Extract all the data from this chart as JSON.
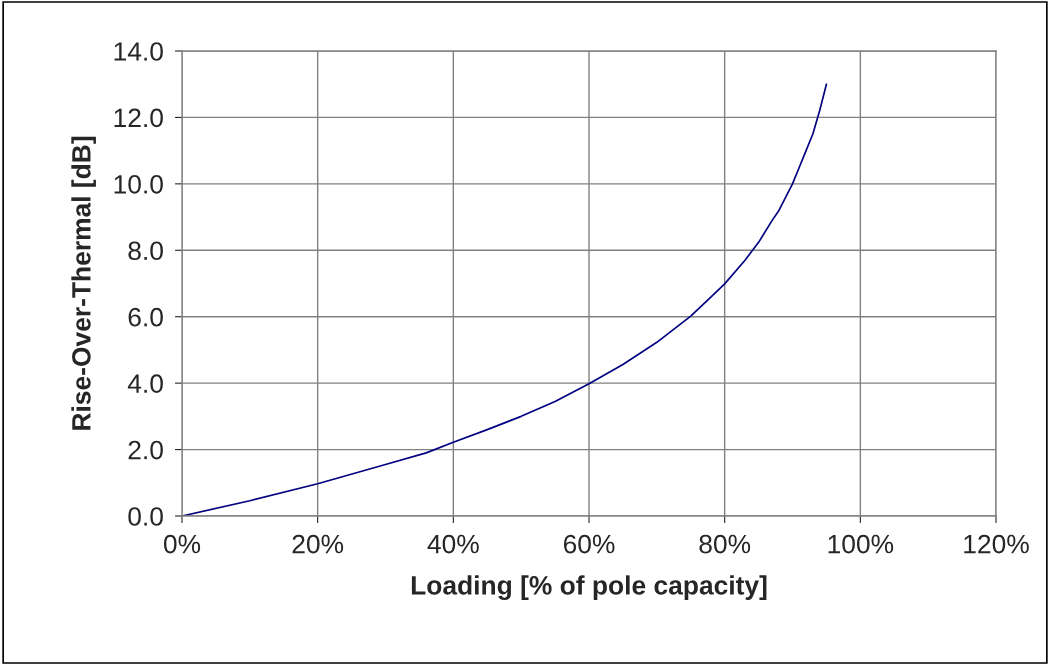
{
  "chart_data": {
    "type": "line",
    "xlabel": "Loading [% of pole capacity]",
    "ylabel": "Rise-Over-Thermal [dB]",
    "x": [
      0,
      10,
      20,
      30,
      36,
      40,
      45,
      50,
      55,
      60,
      65,
      70,
      75,
      78,
      80,
      83,
      85,
      87,
      88,
      89,
      90,
      91,
      92,
      93,
      94,
      95
    ],
    "series": [
      {
        "color": "#000080",
        "values": [
          0,
          0.46,
          0.97,
          1.55,
          1.9,
          2.22,
          2.6,
          3.0,
          3.45,
          3.98,
          4.56,
          5.23,
          6.02,
          6.6,
          6.99,
          7.7,
          8.24,
          8.9,
          9.2,
          9.6,
          10.0,
          10.5,
          11.0,
          11.5,
          12.2,
          13.0
        ]
      }
    ],
    "xlim": [
      0,
      120
    ],
    "xticks": [
      {
        "value": 0,
        "label": "0%"
      },
      {
        "value": 20,
        "label": "20%"
      },
      {
        "value": 40,
        "label": "40%"
      },
      {
        "value": 60,
        "label": "60%"
      },
      {
        "value": 80,
        "label": "80%"
      },
      {
        "value": 100,
        "label": "100%"
      },
      {
        "value": 120,
        "label": "120%"
      }
    ],
    "ylim": [
      0,
      14
    ],
    "yticks": [
      {
        "value": 0,
        "label": "0.0"
      },
      {
        "value": 2,
        "label": "2.0"
      },
      {
        "value": 4,
        "label": "4.0"
      },
      {
        "value": 6,
        "label": "6.0"
      },
      {
        "value": 8,
        "label": "8.0"
      },
      {
        "value": 10,
        "label": "10.0"
      },
      {
        "value": 12,
        "label": "12.0"
      },
      {
        "value": 14,
        "label": "14.0"
      }
    ],
    "grid": true,
    "marker": "none",
    "line_style": "solid"
  }
}
